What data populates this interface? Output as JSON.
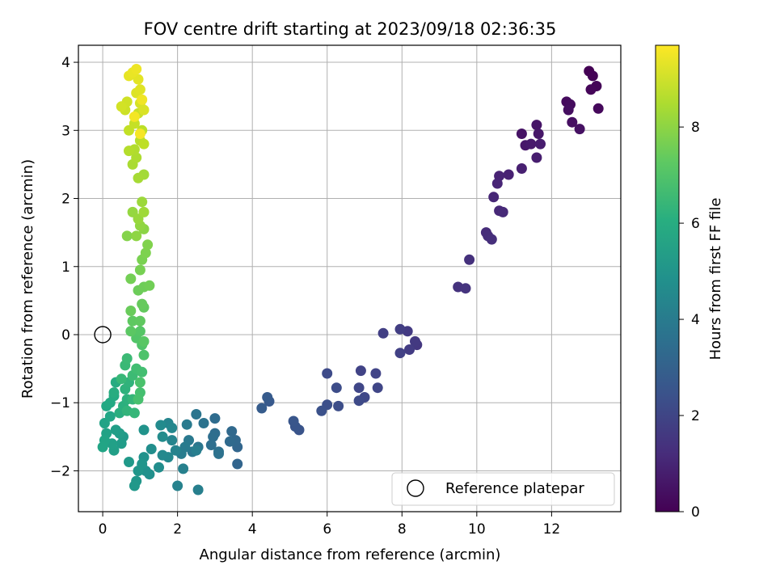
{
  "chart_data": {
    "type": "scatter",
    "title": "FOV centre drift starting at 2023/09/18 02:36:35",
    "xlabel": "Angular distance from reference (arcmin)",
    "ylabel": "Rotation from reference (arcmin)",
    "xlim": [
      -0.65,
      13.85
    ],
    "ylim": [
      -2.6,
      4.25
    ],
    "xticks": [
      0,
      2,
      4,
      6,
      8,
      10,
      12
    ],
    "yticks": [
      -2,
      -1,
      0,
      1,
      2,
      3,
      4
    ],
    "grid": true,
    "colorbar": {
      "label": "Hours from first FF file",
      "range": [
        0,
        9.7
      ],
      "ticks": [
        0,
        2,
        4,
        6,
        8
      ],
      "colormap": "viridis"
    },
    "legend": {
      "location": "lower-right",
      "entries": [
        "Reference platepar"
      ]
    },
    "reference": {
      "x": 0,
      "y": 0,
      "label": "Reference platepar"
    },
    "points": [
      [
        13.0,
        3.87,
        0.0
      ],
      [
        13.1,
        3.8,
        0.05
      ],
      [
        13.2,
        3.65,
        0.1
      ],
      [
        13.05,
        3.6,
        0.15
      ],
      [
        13.25,
        3.32,
        0.2
      ],
      [
        12.4,
        3.42,
        0.25
      ],
      [
        12.5,
        3.38,
        0.3
      ],
      [
        12.45,
        3.3,
        0.35
      ],
      [
        12.55,
        3.12,
        0.4
      ],
      [
        12.75,
        3.02,
        0.45
      ],
      [
        11.2,
        2.95,
        0.5
      ],
      [
        11.6,
        3.08,
        0.55
      ],
      [
        11.65,
        2.95,
        0.6
      ],
      [
        11.3,
        2.78,
        0.65
      ],
      [
        11.45,
        2.8,
        0.7
      ],
      [
        11.7,
        2.8,
        0.75
      ],
      [
        11.6,
        2.6,
        0.8
      ],
      [
        11.2,
        2.44,
        0.85
      ],
      [
        10.85,
        2.35,
        0.9
      ],
      [
        10.6,
        2.33,
        0.95
      ],
      [
        10.55,
        2.22,
        1.0
      ],
      [
        10.45,
        2.02,
        1.05
      ],
      [
        10.6,
        1.82,
        1.1
      ],
      [
        10.7,
        1.8,
        1.15
      ],
      [
        10.25,
        1.5,
        1.2
      ],
      [
        10.3,
        1.45,
        1.25
      ],
      [
        10.4,
        1.4,
        1.3
      ],
      [
        9.8,
        1.1,
        1.35
      ],
      [
        9.5,
        0.7,
        1.4
      ],
      [
        9.7,
        0.68,
        1.45
      ],
      [
        8.4,
        -0.15,
        1.55
      ],
      [
        8.35,
        -0.1,
        1.6
      ],
      [
        8.15,
        0.05,
        1.65
      ],
      [
        8.2,
        -0.22,
        1.7
      ],
      [
        7.95,
        0.08,
        1.75
      ],
      [
        7.5,
        0.02,
        1.8
      ],
      [
        7.95,
        -0.27,
        1.85
      ],
      [
        6.9,
        -0.53,
        1.9
      ],
      [
        7.3,
        -0.57,
        1.95
      ],
      [
        7.35,
        -0.78,
        2.0
      ],
      [
        6.85,
        -0.78,
        2.05
      ],
      [
        7.0,
        -0.92,
        2.1
      ],
      [
        6.85,
        -0.97,
        2.15
      ],
      [
        6.0,
        -0.57,
        2.2
      ],
      [
        6.25,
        -0.78,
        2.25
      ],
      [
        6.3,
        -1.05,
        2.3
      ],
      [
        6.0,
        -1.03,
        2.35
      ],
      [
        5.85,
        -1.12,
        2.4
      ],
      [
        5.25,
        -1.4,
        2.5
      ],
      [
        5.15,
        -1.35,
        2.55
      ],
      [
        5.1,
        -1.27,
        2.6
      ],
      [
        4.45,
        -0.98,
        2.7
      ],
      [
        4.4,
        -0.92,
        2.75
      ],
      [
        4.25,
        -1.08,
        2.8
      ],
      [
        3.6,
        -1.9,
        3.15
      ],
      [
        3.6,
        -1.65,
        3.2
      ],
      [
        3.55,
        -1.55,
        3.25
      ],
      [
        3.45,
        -1.42,
        3.3
      ],
      [
        3.4,
        -1.57,
        3.35
      ],
      [
        3.0,
        -1.23,
        3.4
      ],
      [
        3.0,
        -1.45,
        3.45
      ],
      [
        2.95,
        -1.5,
        3.5
      ],
      [
        2.9,
        -1.62,
        3.55
      ],
      [
        3.1,
        -1.72,
        3.6
      ],
      [
        3.1,
        -1.75,
        3.65
      ],
      [
        2.7,
        -1.3,
        3.7
      ],
      [
        2.5,
        -1.17,
        3.75
      ],
      [
        2.55,
        -1.65,
        3.8
      ],
      [
        2.4,
        -1.72,
        3.85
      ],
      [
        2.3,
        -1.55,
        3.9
      ],
      [
        2.25,
        -1.32,
        3.95
      ],
      [
        2.2,
        -1.65,
        4.0
      ],
      [
        2.1,
        -1.75,
        4.05
      ],
      [
        2.5,
        -1.7,
        4.1
      ],
      [
        2.55,
        -2.28,
        4.15
      ],
      [
        2.15,
        -1.97,
        4.2
      ],
      [
        2.0,
        -2.22,
        4.25
      ],
      [
        1.95,
        -1.7,
        4.3
      ],
      [
        1.85,
        -1.55,
        4.35
      ],
      [
        1.75,
        -1.3,
        4.4
      ],
      [
        1.85,
        -1.37,
        4.45
      ],
      [
        1.75,
        -1.8,
        4.5
      ],
      [
        1.6,
        -1.77,
        4.55
      ],
      [
        1.55,
        -1.33,
        4.6
      ],
      [
        1.6,
        -1.5,
        4.65
      ],
      [
        1.5,
        -1.95,
        4.7
      ],
      [
        1.3,
        -1.68,
        4.75
      ],
      [
        1.25,
        -2.05,
        4.8
      ],
      [
        1.15,
        -2.0,
        4.85
      ],
      [
        1.1,
        -1.8,
        4.9
      ],
      [
        1.1,
        -1.4,
        4.95
      ],
      [
        1.05,
        -1.9,
        5.0
      ],
      [
        0.95,
        -2.0,
        5.05
      ],
      [
        0.9,
        -2.15,
        5.1
      ],
      [
        0.85,
        -2.22,
        5.15
      ],
      [
        0.7,
        -1.87,
        5.2
      ],
      [
        0.55,
        -1.5,
        5.25
      ],
      [
        0.5,
        -1.6,
        5.3
      ],
      [
        0.45,
        -1.45,
        5.35
      ],
      [
        0.35,
        -1.4,
        5.4
      ],
      [
        0.3,
        -1.7,
        5.45
      ],
      [
        0.25,
        -1.6,
        5.5
      ],
      [
        0.1,
        -1.45,
        5.55
      ],
      [
        0.05,
        -1.3,
        5.6
      ],
      [
        0.05,
        -1.55,
        5.65
      ],
      [
        0.0,
        -1.65,
        5.7
      ],
      [
        0.2,
        -1.2,
        5.75
      ],
      [
        0.1,
        -1.05,
        5.8
      ],
      [
        0.2,
        -1.0,
        5.85
      ],
      [
        0.3,
        -0.9,
        5.9
      ],
      [
        0.35,
        -0.7,
        5.95
      ],
      [
        0.3,
        -0.85,
        6.0
      ],
      [
        0.45,
        -1.15,
        6.05
      ],
      [
        0.55,
        -1.05,
        6.1
      ],
      [
        0.65,
        -0.95,
        6.15
      ],
      [
        0.6,
        -0.8,
        6.2
      ],
      [
        0.7,
        -0.7,
        6.25
      ],
      [
        0.65,
        -1.12,
        6.3
      ],
      [
        0.8,
        -0.95,
        6.35
      ],
      [
        0.85,
        -1.15,
        6.4
      ],
      [
        0.5,
        -0.65,
        6.45
      ],
      [
        0.6,
        -0.45,
        6.5
      ],
      [
        0.65,
        -0.35,
        6.55
      ],
      [
        0.8,
        -0.6,
        6.6
      ],
      [
        0.9,
        -0.5,
        6.7
      ],
      [
        1.05,
        -0.55,
        6.75
      ],
      [
        1.0,
        -0.85,
        6.8
      ],
      [
        0.95,
        -0.95,
        6.85
      ],
      [
        1.0,
        -0.7,
        6.9
      ],
      [
        1.1,
        -0.3,
        6.95
      ],
      [
        1.05,
        -0.15,
        7.0
      ],
      [
        0.9,
        -0.05,
        7.05
      ],
      [
        1.0,
        0.05,
        7.1
      ],
      [
        1.1,
        -0.1,
        7.15
      ],
      [
        0.75,
        0.05,
        7.2
      ],
      [
        0.8,
        0.2,
        7.25
      ],
      [
        1.0,
        0.2,
        7.3
      ],
      [
        1.1,
        0.4,
        7.35
      ],
      [
        1.05,
        0.45,
        7.4
      ],
      [
        0.75,
        0.35,
        7.45
      ],
      [
        0.95,
        0.65,
        7.5
      ],
      [
        1.1,
        0.7,
        7.55
      ],
      [
        1.25,
        0.72,
        7.6
      ],
      [
        0.75,
        0.82,
        7.65
      ],
      [
        1.0,
        0.95,
        7.7
      ],
      [
        1.05,
        1.1,
        7.75
      ],
      [
        1.15,
        1.2,
        7.8
      ],
      [
        1.2,
        1.32,
        7.85
      ],
      [
        0.65,
        1.45,
        7.9
      ],
      [
        1.1,
        1.55,
        8.0
      ],
      [
        0.9,
        1.45,
        8.05
      ],
      [
        1.0,
        1.6,
        8.1
      ],
      [
        0.8,
        1.8,
        8.15
      ],
      [
        0.95,
        1.7,
        8.2
      ],
      [
        1.05,
        1.95,
        8.25
      ],
      [
        1.1,
        1.8,
        8.3
      ],
      [
        1.1,
        2.35,
        8.35
      ],
      [
        0.95,
        2.3,
        8.4
      ],
      [
        0.8,
        2.5,
        8.45
      ],
      [
        0.9,
        2.6,
        8.5
      ],
      [
        0.85,
        2.72,
        8.55
      ],
      [
        0.7,
        2.7,
        8.6
      ],
      [
        1.0,
        2.85,
        8.65
      ],
      [
        1.05,
        3.0,
        8.7
      ],
      [
        1.1,
        2.8,
        8.75
      ],
      [
        0.7,
        3.0,
        8.8
      ],
      [
        0.85,
        3.1,
        8.85
      ],
      [
        0.95,
        3.25,
        8.9
      ],
      [
        0.6,
        3.3,
        8.95
      ],
      [
        0.65,
        3.42,
        9.0
      ],
      [
        0.5,
        3.35,
        9.05
      ],
      [
        1.0,
        3.4,
        9.1
      ],
      [
        1.1,
        3.3,
        9.15
      ],
      [
        0.9,
        3.55,
        9.2
      ],
      [
        1.0,
        3.6,
        9.25
      ],
      [
        0.95,
        3.75,
        9.3
      ],
      [
        0.7,
        3.8,
        9.35
      ],
      [
        0.8,
        3.85,
        9.4
      ],
      [
        0.9,
        3.9,
        9.45
      ],
      [
        1.05,
        3.45,
        9.5
      ],
      [
        0.85,
        3.2,
        9.55
      ],
      [
        1.0,
        2.95,
        9.6
      ]
    ]
  }
}
